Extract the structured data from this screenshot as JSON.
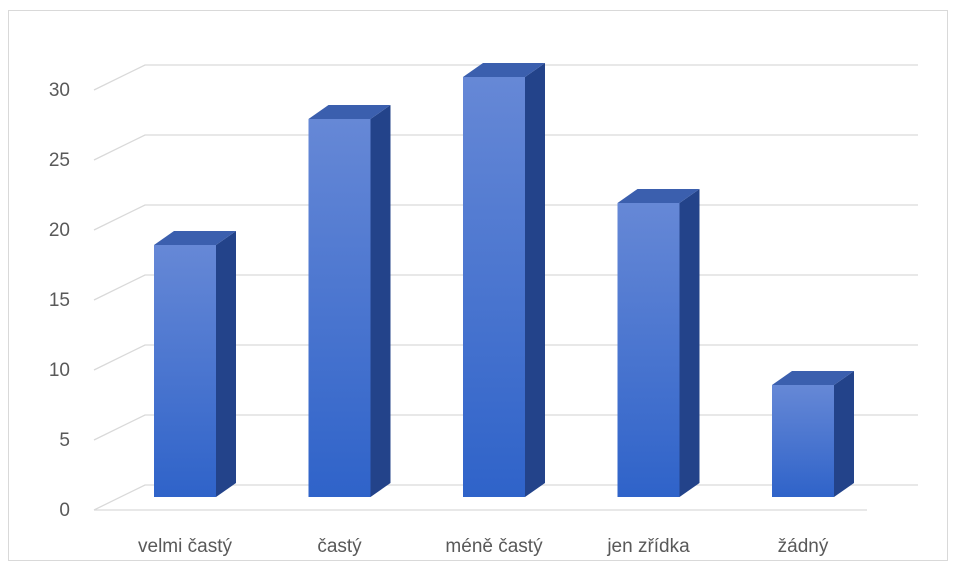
{
  "chart_data": {
    "type": "bar",
    "categories": [
      "velmi častý",
      "častý",
      "méně častý",
      "jen zřídka",
      "žádný"
    ],
    "values": [
      18,
      27,
      30,
      21,
      8
    ],
    "ylim": [
      0,
      30
    ],
    "yticks": [
      0,
      5,
      10,
      15,
      20,
      25,
      30
    ],
    "grid": true,
    "legend": "none",
    "colors": {
      "front_top": "#6688d6",
      "front_bottom": "#2f63c9",
      "side": "#23438a",
      "top": "#3b5fae",
      "grid": "#d9d9d9",
      "text": "#595959"
    }
  }
}
